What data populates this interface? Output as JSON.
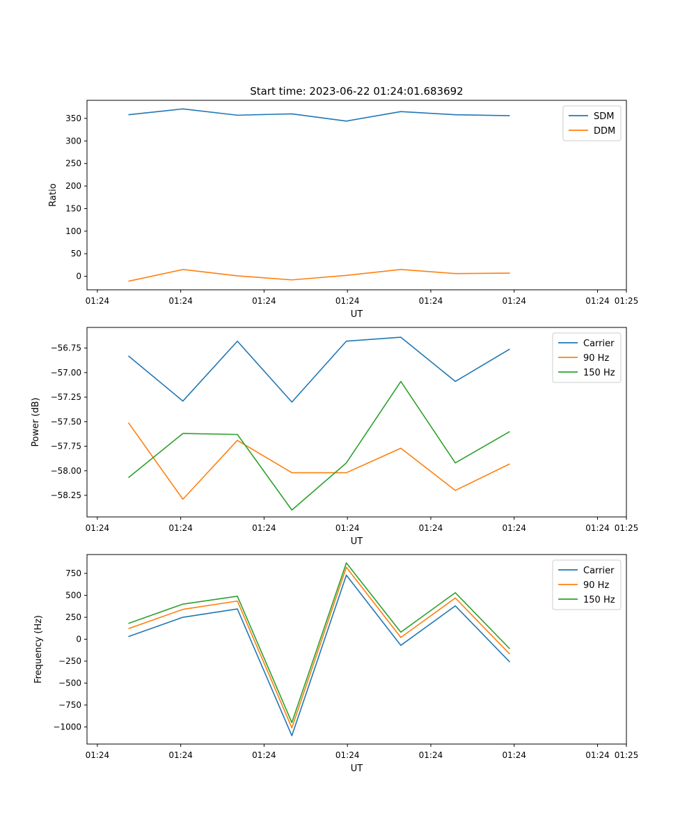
{
  "title": "Start time: 2023-06-22 01:24:01.683692",
  "colors": {
    "c0": "#1f77b4",
    "c1": "#ff7f0e",
    "c2": "#2ca02c"
  },
  "chart_data": [
    {
      "type": "line",
      "title": "Start time: 2023-06-22 01:24:01.683692",
      "xlabel": "UT",
      "ylabel": "Ratio",
      "x_tick_labels": [
        "01:24",
        "01:24",
        "01:24",
        "01:24",
        "01:24",
        "01:24",
        "01:24"
      ],
      "x_last_tick_label": "01:25",
      "y_ticks": [
        0,
        50,
        100,
        150,
        200,
        250,
        300,
        350
      ],
      "ylim": [
        -30,
        390
      ],
      "legend_position": "top-right",
      "series": [
        {
          "name": "SDM",
          "values": [
            358,
            371,
            357,
            360,
            344,
            365,
            358,
            356
          ]
        },
        {
          "name": "DDM",
          "values": [
            -11,
            15,
            1,
            -8,
            2,
            15,
            6,
            7
          ]
        }
      ]
    },
    {
      "type": "line",
      "xlabel": "UT",
      "ylabel": "Power (dB)",
      "x_tick_labels": [
        "01:24",
        "01:24",
        "01:24",
        "01:24",
        "01:24",
        "01:24",
        "01:24"
      ],
      "x_last_tick_label": "01:25",
      "y_ticks": [
        -58.25,
        -58.0,
        -57.75,
        -57.5,
        -57.25,
        -57.0,
        -56.75
      ],
      "y_tick_labels": [
        "−58.25",
        "−58.00",
        "−57.75",
        "−57.50",
        "−57.25",
        "−57.00",
        "−56.75"
      ],
      "ylim": [
        -58.47,
        -56.54
      ],
      "legend_position": "top-right",
      "series": [
        {
          "name": "Carrier",
          "values": [
            -56.83,
            -57.29,
            -56.68,
            -57.3,
            -56.68,
            -56.64,
            -57.09,
            -56.76
          ]
        },
        {
          "name": "90 Hz",
          "values": [
            -57.51,
            -58.29,
            -57.69,
            -58.02,
            -58.02,
            -57.77,
            -58.2,
            -57.93
          ]
        },
        {
          "name": "150 Hz",
          "values": [
            -58.07,
            -57.62,
            -57.63,
            -58.4,
            -57.92,
            -57.09,
            -57.92,
            -57.6
          ]
        }
      ]
    },
    {
      "type": "line",
      "xlabel": "UT",
      "ylabel": "Frequency (Hz)",
      "x_tick_labels": [
        "01:24",
        "01:24",
        "01:24",
        "01:24",
        "01:24",
        "01:24",
        "01:24"
      ],
      "x_last_tick_label": "01:25",
      "y_ticks": [
        -1000,
        -750,
        -500,
        -250,
        0,
        250,
        500,
        750
      ],
      "y_tick_labels": [
        "−1000",
        "−750",
        "−500",
        "−250",
        "0",
        "250",
        "500",
        "750"
      ],
      "ylim": [
        -1195,
        965
      ],
      "legend_position": "top-right",
      "series": [
        {
          "name": "Carrier",
          "values": [
            30,
            250,
            345,
            -1100,
            730,
            -70,
            380,
            -260
          ]
        },
        {
          "name": "90 Hz",
          "values": [
            120,
            340,
            435,
            -1010,
            820,
            20,
            470,
            -170
          ]
        },
        {
          "name": "150 Hz",
          "values": [
            180,
            400,
            490,
            -950,
            870,
            80,
            530,
            -110
          ]
        }
      ]
    }
  ]
}
